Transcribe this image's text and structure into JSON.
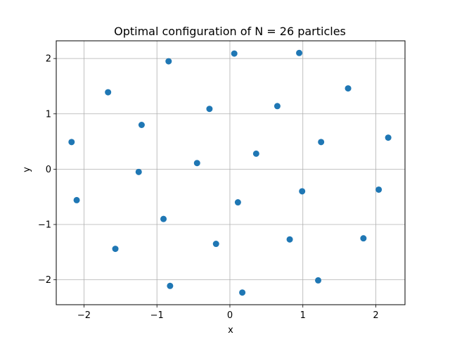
{
  "chart_data": {
    "type": "scatter",
    "title": "Optimal configuration of N = 26 particles",
    "xlabel": "x",
    "ylabel": "y",
    "xlim": [
      -2.38,
      2.4
    ],
    "ylim": [
      -2.45,
      2.32
    ],
    "xticks": [
      -2,
      -1,
      0,
      1,
      2
    ],
    "yticks": [
      -2,
      -1,
      0,
      1,
      2
    ],
    "xtick_labels": [
      "−2",
      "−1",
      "0",
      "1",
      "2"
    ],
    "ytick_labels": [
      "−2",
      "−1",
      "0",
      "1",
      "2"
    ],
    "grid": true,
    "marker_color": "#1f77b4",
    "points": [
      {
        "x": -2.17,
        "y": 0.49
      },
      {
        "x": -2.1,
        "y": -0.56
      },
      {
        "x": -1.67,
        "y": 1.39
      },
      {
        "x": -1.57,
        "y": -1.44
      },
      {
        "x": -1.25,
        "y": -0.05
      },
      {
        "x": -1.21,
        "y": 0.8
      },
      {
        "x": -0.91,
        "y": -0.9
      },
      {
        "x": -0.84,
        "y": 1.95
      },
      {
        "x": -0.82,
        "y": -2.11
      },
      {
        "x": -0.45,
        "y": 0.11
      },
      {
        "x": -0.28,
        "y": 1.09
      },
      {
        "x": -0.19,
        "y": -1.35
      },
      {
        "x": 0.06,
        "y": 2.09
      },
      {
        "x": 0.11,
        "y": -0.6
      },
      {
        "x": 0.17,
        "y": -2.23
      },
      {
        "x": 0.36,
        "y": 0.28
      },
      {
        "x": 0.65,
        "y": 1.14
      },
      {
        "x": 0.82,
        "y": -1.27
      },
      {
        "x": 0.95,
        "y": 2.1
      },
      {
        "x": 0.99,
        "y": -0.4
      },
      {
        "x": 1.21,
        "y": -2.01
      },
      {
        "x": 1.25,
        "y": 0.49
      },
      {
        "x": 1.62,
        "y": 1.46
      },
      {
        "x": 1.83,
        "y": -1.25
      },
      {
        "x": 2.04,
        "y": -0.37
      },
      {
        "x": 2.17,
        "y": 0.57
      }
    ]
  }
}
